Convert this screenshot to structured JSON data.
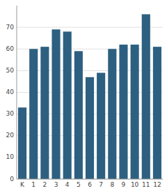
{
  "chart_data": {
    "type": "bar",
    "categories": [
      "K",
      "1",
      "2",
      "3",
      "4",
      "5",
      "6",
      "7",
      "8",
      "9",
      "10",
      "11",
      "12"
    ],
    "values": [
      33,
      60,
      61,
      69,
      68,
      59,
      47,
      49,
      60,
      62,
      62,
      76,
      61
    ],
    "color": "#2d6080",
    "ylim": [
      0,
      80
    ],
    "yticks": [
      0,
      10,
      20,
      30,
      40,
      50,
      60,
      70
    ],
    "grid": true
  }
}
